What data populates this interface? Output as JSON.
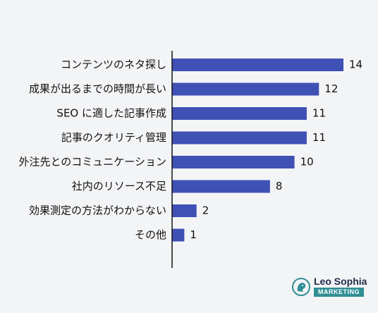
{
  "chart_data": {
    "type": "bar",
    "orientation": "horizontal",
    "categories": [
      "コンテンツのネタ探し",
      "成果が出るまでの時間が長い",
      "SEO に適した記事作成",
      "記事のクオリティ管理",
      "外注先とのコミュニケーション",
      "社内のリソース不足",
      "効果測定の方法がわからない",
      "その他"
    ],
    "values": [
      14,
      12,
      11,
      11,
      10,
      8,
      2,
      1
    ],
    "title": "",
    "xlabel": "",
    "ylabel": "",
    "xlim": [
      0,
      14
    ],
    "grid": false,
    "bar_color": "#3f51b5"
  },
  "logo": {
    "name": "Leo Sophia",
    "tag": "MARKETING",
    "icon": "lion-head-icon",
    "color": "#2f8f94"
  }
}
